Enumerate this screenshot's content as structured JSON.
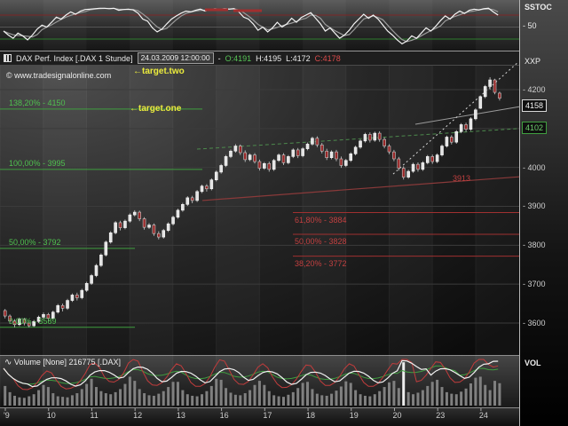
{
  "watermark": "© www.tradesignalonline.com",
  "annotations": {
    "target_two": "←target.two",
    "target_one": "←target.one"
  },
  "title_bar": {
    "instrument": "DAX Perf. Index [.DAX 1 Stunde]",
    "datetime": "24.03.2009 12:00:00",
    "dash": "-",
    "open": "O:4191",
    "high": "H:4195",
    "low": "L:4172",
    "close": "C:4178"
  },
  "axis": {
    "stoch_label": "SSTOC",
    "stoch_mid_tick": "- 50",
    "xxp_label": "XXP",
    "vol_label": "VOL",
    "price_ticks": [
      {
        "label": "- 4200",
        "price": 4200
      },
      {
        "label": "- 4100",
        "price": 4100
      },
      {
        "label": "- 4000",
        "price": 4000
      },
      {
        "label": "- 3900",
        "price": 3900
      },
      {
        "label": "- 3800",
        "price": 3800
      },
      {
        "label": "- 3700",
        "price": 3700
      },
      {
        "label": "- 3600",
        "price": 3600
      }
    ],
    "tags": [
      {
        "label": "4158",
        "price": 4158,
        "style": "white"
      },
      {
        "label": "4102",
        "price": 4102,
        "style": "green"
      }
    ]
  },
  "panels": {
    "volume": {
      "header_text": "Volume [None] 216775 [.DAX]"
    }
  },
  "x_axis": {
    "labels": [
      "'9",
      "10",
      "11",
      "12",
      "13",
      "16",
      "17",
      "18",
      "19",
      "20",
      "23",
      "24"
    ]
  },
  "chart_data": {
    "type": "candlestick",
    "title": "DAX Perf. Index [.DAX 1 Stunde]",
    "x_categories_days": [
      "'9",
      "10",
      "11",
      "12",
      "13",
      "16",
      "17",
      "18",
      "19",
      "20",
      "23",
      "24"
    ],
    "bars_per_day": 9,
    "last_day_bars": 5,
    "ylim": [
      3560,
      4280
    ],
    "grid_prices": [
      4200,
      4100,
      4000,
      3900,
      3800,
      3700,
      3600
    ],
    "ohlc": [
      [
        3632,
        3636,
        3612,
        3618
      ],
      [
        3618,
        3622,
        3598,
        3605
      ],
      [
        3605,
        3610,
        3589,
        3596
      ],
      [
        3596,
        3614,
        3592,
        3610
      ],
      [
        3610,
        3613,
        3594,
        3600
      ],
      [
        3600,
        3606,
        3589,
        3593
      ],
      [
        3593,
        3608,
        3590,
        3604
      ],
      [
        3604,
        3619,
        3600,
        3615
      ],
      [
        3615,
        3627,
        3610,
        3622
      ],
      [
        3622,
        3626,
        3605,
        3612
      ],
      [
        3612,
        3632,
        3608,
        3628
      ],
      [
        3628,
        3649,
        3624,
        3645
      ],
      [
        3645,
        3650,
        3630,
        3638
      ],
      [
        3638,
        3662,
        3634,
        3658
      ],
      [
        3658,
        3676,
        3654,
        3672
      ],
      [
        3672,
        3678,
        3658,
        3665
      ],
      [
        3665,
        3688,
        3661,
        3684
      ],
      [
        3684,
        3706,
        3680,
        3702
      ],
      [
        3702,
        3726,
        3698,
        3722
      ],
      [
        3722,
        3752,
        3718,
        3748
      ],
      [
        3748,
        3779,
        3744,
        3775
      ],
      [
        3775,
        3812,
        3771,
        3808
      ],
      [
        3808,
        3836,
        3804,
        3832
      ],
      [
        3832,
        3862,
        3828,
        3858
      ],
      [
        3858,
        3863,
        3838,
        3845
      ],
      [
        3845,
        3866,
        3841,
        3862
      ],
      [
        3862,
        3882,
        3858,
        3878
      ],
      [
        3878,
        3890,
        3874,
        3885
      ],
      [
        3885,
        3889,
        3862,
        3868
      ],
      [
        3868,
        3872,
        3840,
        3846
      ],
      [
        3846,
        3857,
        3842,
        3852
      ],
      [
        3852,
        3856,
        3824,
        3830
      ],
      [
        3830,
        3836,
        3815,
        3821
      ],
      [
        3821,
        3842,
        3817,
        3838
      ],
      [
        3838,
        3859,
        3834,
        3855
      ],
      [
        3855,
        3876,
        3851,
        3872
      ],
      [
        3872,
        3894,
        3868,
        3890
      ],
      [
        3890,
        3909,
        3886,
        3905
      ],
      [
        3905,
        3926,
        3901,
        3922
      ],
      [
        3922,
        3927,
        3908,
        3915
      ],
      [
        3915,
        3942,
        3911,
        3938
      ],
      [
        3938,
        3956,
        3934,
        3952
      ],
      [
        3952,
        3957,
        3938,
        3945
      ],
      [
        3945,
        3972,
        3941,
        3968
      ],
      [
        3968,
        3992,
        3964,
        3988
      ],
      [
        3988,
        4009,
        3984,
        4005
      ],
      [
        4005,
        4032,
        4001,
        4028
      ],
      [
        4028,
        4046,
        4024,
        4042
      ],
      [
        4042,
        4060,
        4038,
        4055
      ],
      [
        4055,
        4059,
        4032,
        4038
      ],
      [
        4038,
        4044,
        4014,
        4020
      ],
      [
        4020,
        4036,
        4016,
        4032
      ],
      [
        4032,
        4037,
        4010,
        4015
      ],
      [
        4015,
        4020,
        3992,
        3998
      ],
      [
        3998,
        4014,
        3994,
        4010
      ],
      [
        4010,
        4015,
        3989,
        3995
      ],
      [
        3995,
        4022,
        3991,
        4018
      ],
      [
        4018,
        4036,
        4014,
        4032
      ],
      [
        4032,
        4037,
        4006,
        4012
      ],
      [
        4012,
        4032,
        4008,
        4028
      ],
      [
        4028,
        4049,
        4024,
        4045
      ],
      [
        4045,
        4050,
        4024,
        4030
      ],
      [
        4030,
        4052,
        4026,
        4048
      ],
      [
        4048,
        4064,
        4044,
        4060
      ],
      [
        4060,
        4079,
        4056,
        4075
      ],
      [
        4075,
        4080,
        4052,
        4058
      ],
      [
        4058,
        4063,
        4036,
        4042
      ],
      [
        4042,
        4048,
        4019,
        4025
      ],
      [
        4025,
        4044,
        4021,
        4040
      ],
      [
        4040,
        4045,
        4016,
        4022
      ],
      [
        4022,
        4028,
        3999,
        4005
      ],
      [
        4005,
        4022,
        4001,
        4018
      ],
      [
        4018,
        4039,
        4014,
        4035
      ],
      [
        4035,
        4056,
        4031,
        4052
      ],
      [
        4052,
        4072,
        4048,
        4068
      ],
      [
        4068,
        4089,
        4064,
        4085
      ],
      [
        4085,
        4090,
        4064,
        4070
      ],
      [
        4070,
        4092,
        4066,
        4088
      ],
      [
        4088,
        4093,
        4066,
        4072
      ],
      [
        4072,
        4077,
        4049,
        4055
      ],
      [
        4055,
        4060,
        4034,
        4040
      ],
      [
        4040,
        4045,
        4016,
        4022
      ],
      [
        4022,
        4027,
        3992,
        3998
      ],
      [
        3998,
        4003,
        3969,
        3975
      ],
      [
        3975,
        3994,
        3971,
        3990
      ],
      [
        3990,
        4012,
        3986,
        4008
      ],
      [
        4008,
        4013,
        3989,
        3995
      ],
      [
        3995,
        4016,
        3991,
        4012
      ],
      [
        4012,
        4032,
        4008,
        4028
      ],
      [
        4028,
        4033,
        4009,
        4015
      ],
      [
        4015,
        4036,
        4011,
        4032
      ],
      [
        4032,
        4059,
        4028,
        4055
      ],
      [
        4055,
        4082,
        4051,
        4078
      ],
      [
        4078,
        4083,
        4059,
        4065
      ],
      [
        4065,
        4096,
        4061,
        4092
      ],
      [
        4092,
        4114,
        4088,
        4110
      ],
      [
        4110,
        4115,
        4092,
        4098
      ],
      [
        4098,
        4129,
        4094,
        4125
      ],
      [
        4125,
        4152,
        4121,
        4148
      ],
      [
        4152,
        4185,
        4150,
        4182
      ],
      [
        4182,
        4212,
        4178,
        4208
      ],
      [
        4208,
        4232,
        4200,
        4225
      ],
      [
        4225,
        4228,
        4188,
        4193
      ],
      [
        4191,
        4195,
        4172,
        4178
      ]
    ],
    "levels_green": [
      {
        "label": "138,20% - 4150",
        "price": 4150,
        "x1": 0,
        "x2": 228
      },
      {
        "label": "100,00% - 3995",
        "price": 3995,
        "x1": 0,
        "x2": 228
      },
      {
        "label": "50,00% - 3792",
        "price": 3792,
        "x1": 0,
        "x2": 152
      },
      {
        "label": "0,00% - 3589",
        "price": 3589,
        "x1": 0,
        "x2": 152
      }
    ],
    "levels_red": [
      {
        "label": "61,80% - 3884",
        "price": 3884,
        "x1": 330,
        "x2": 585
      },
      {
        "label": "50,00% - 3828",
        "price": 3828,
        "x1": 330,
        "x2": 585
      },
      {
        "label": "38,20% - 3772",
        "price": 3772,
        "x1": 330,
        "x2": 585
      }
    ],
    "trendlines": [
      {
        "name": "upper-channel-line",
        "x1": 222,
        "p1": 4047,
        "x2": 585,
        "p2": 4100,
        "color": "#4d8a4d",
        "dash": "4,3",
        "width": 1
      },
      {
        "name": "lower-channel-line",
        "x1": 228,
        "p1": 3915,
        "x2": 585,
        "p2": 3976,
        "color": "#8a3a3a",
        "width": 1.2
      },
      {
        "name": "tag-connector-line",
        "x1": 468,
        "p1": 4111,
        "x2": 585,
        "p2": 4156,
        "color": "#9a9a9a",
        "width": 1
      }
    ],
    "projection": {
      "name": "projection-dotted-line",
      "x1": 443,
      "p1": 3983,
      "x2": 584,
      "p2": 4271,
      "color": "#d6d6d6",
      "dash": "2,3",
      "width": 1
    },
    "trend_price_label": {
      "text": "3913",
      "x": 510,
      "y": 196
    },
    "indicators": {
      "stochastic": {
        "type": "line",
        "title": "SSTOC",
        "ylim": [
          0,
          100
        ],
        "levels": [
          80,
          50,
          20
        ],
        "values": [
          40,
          30,
          22,
          35,
          28,
          18,
          30,
          45,
          55,
          50,
          62,
          75,
          70,
          80,
          88,
          82,
          90,
          94,
          95,
          96,
          97,
          97,
          96,
          97,
          92,
          94,
          95,
          93,
          85,
          70,
          65,
          48,
          38,
          45,
          58,
          70,
          78,
          85,
          90,
          88,
          92,
          95,
          90,
          94,
          96,
          95,
          96,
          95,
          96,
          88,
          75,
          70,
          58,
          42,
          50,
          38,
          48,
          62,
          50,
          58,
          72,
          62,
          74,
          80,
          86,
          72,
          58,
          40,
          48,
          35,
          22,
          30,
          42,
          58,
          70,
          82,
          72,
          80,
          70,
          55,
          40,
          30,
          18,
          8,
          15,
          28,
          22,
          35,
          48,
          40,
          52,
          66,
          78,
          70,
          82,
          90,
          84,
          92,
          95,
          93,
          96,
          97,
          88,
          80
        ],
        "signal_marks": [
          {
            "x1": 231,
            "x2": 257,
            "y": 11
          },
          {
            "x1": 263,
            "x2": 295,
            "y": 12
          }
        ]
      },
      "volume": {
        "type": "bar",
        "title": "Volume [None] 216775 [.DAX]",
        "last_value": 216775,
        "values_thousands": [
          190,
          130,
          95,
          80,
          75,
          90,
          110,
          150,
          200,
          180,
          120,
          90,
          85,
          80,
          100,
          120,
          160,
          210,
          260,
          180,
          140,
          120,
          110,
          130,
          160,
          210,
          280,
          240,
          160,
          120,
          100,
          95,
          115,
          140,
          180,
          230,
          230,
          150,
          110,
          95,
          90,
          110,
          140,
          190,
          260,
          250,
          170,
          125,
          105,
          100,
          120,
          150,
          200,
          240,
          200,
          140,
          100,
          90,
          85,
          105,
          130,
          170,
          220,
          230,
          160,
          115,
          100,
          95,
          115,
          145,
          185,
          235,
          220,
          150,
          110,
          95,
          90,
          110,
          140,
          180,
          225,
          240,
          170,
          420,
          130,
          110,
          125,
          150,
          190,
          230,
          250,
          180,
          130,
          115,
          110,
          135,
          165,
          215,
          270,
          280,
          200,
          150,
          240,
          217
        ]
      }
    }
  },
  "colors": {
    "candle_up": "#e4e4e4",
    "candle_down": "#992828",
    "fib_green": "#3f9e3f",
    "fib_red": "#a03030",
    "target_yellow": "#ecec3d"
  }
}
